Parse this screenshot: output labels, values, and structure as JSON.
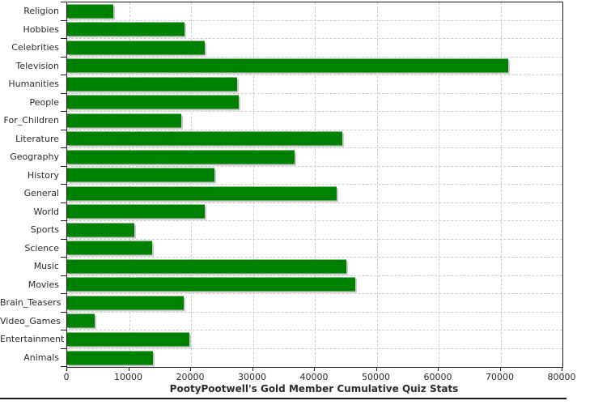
{
  "title": "PootyPootwell's Gold Member Cumulative Quiz Stats",
  "colors": {
    "bar": "#008000",
    "bar_shadow": "#c9c9c9",
    "grid": "#cccccc",
    "axis": "#1a1a1a",
    "text": "#2b2b2b",
    "background": "#ffffff"
  },
  "chart_data": {
    "type": "bar",
    "orientation": "horizontal",
    "title": "PootyPootwell's Gold Member Cumulative Quiz Stats",
    "xlabel": "",
    "ylabel": "",
    "xlim": [
      0,
      80000
    ],
    "x_ticks": [
      0,
      10000,
      20000,
      30000,
      40000,
      50000,
      60000,
      70000,
      80000
    ],
    "x_tick_labels": [
      "0",
      "10000",
      "20000",
      "30000",
      "40000",
      "50000",
      "60000",
      "70000",
      "80000"
    ],
    "grid": true,
    "legend": false,
    "categories": [
      "Religion",
      "Hobbies",
      "Celebrities",
      "Television",
      "Humanities",
      "People",
      "For_Children",
      "Literature",
      "Geography",
      "History",
      "General",
      "World",
      "Sports",
      "Science",
      "Music",
      "Movies",
      "Brain_Teasers",
      "Video_Games",
      "Entertainment",
      "Animals"
    ],
    "values": [
      7400,
      18900,
      22200,
      71300,
      27400,
      27700,
      18400,
      44500,
      36700,
      23800,
      43500,
      22200,
      10900,
      13700,
      45100,
      46500,
      18800,
      4500,
      19700,
      13800
    ]
  }
}
